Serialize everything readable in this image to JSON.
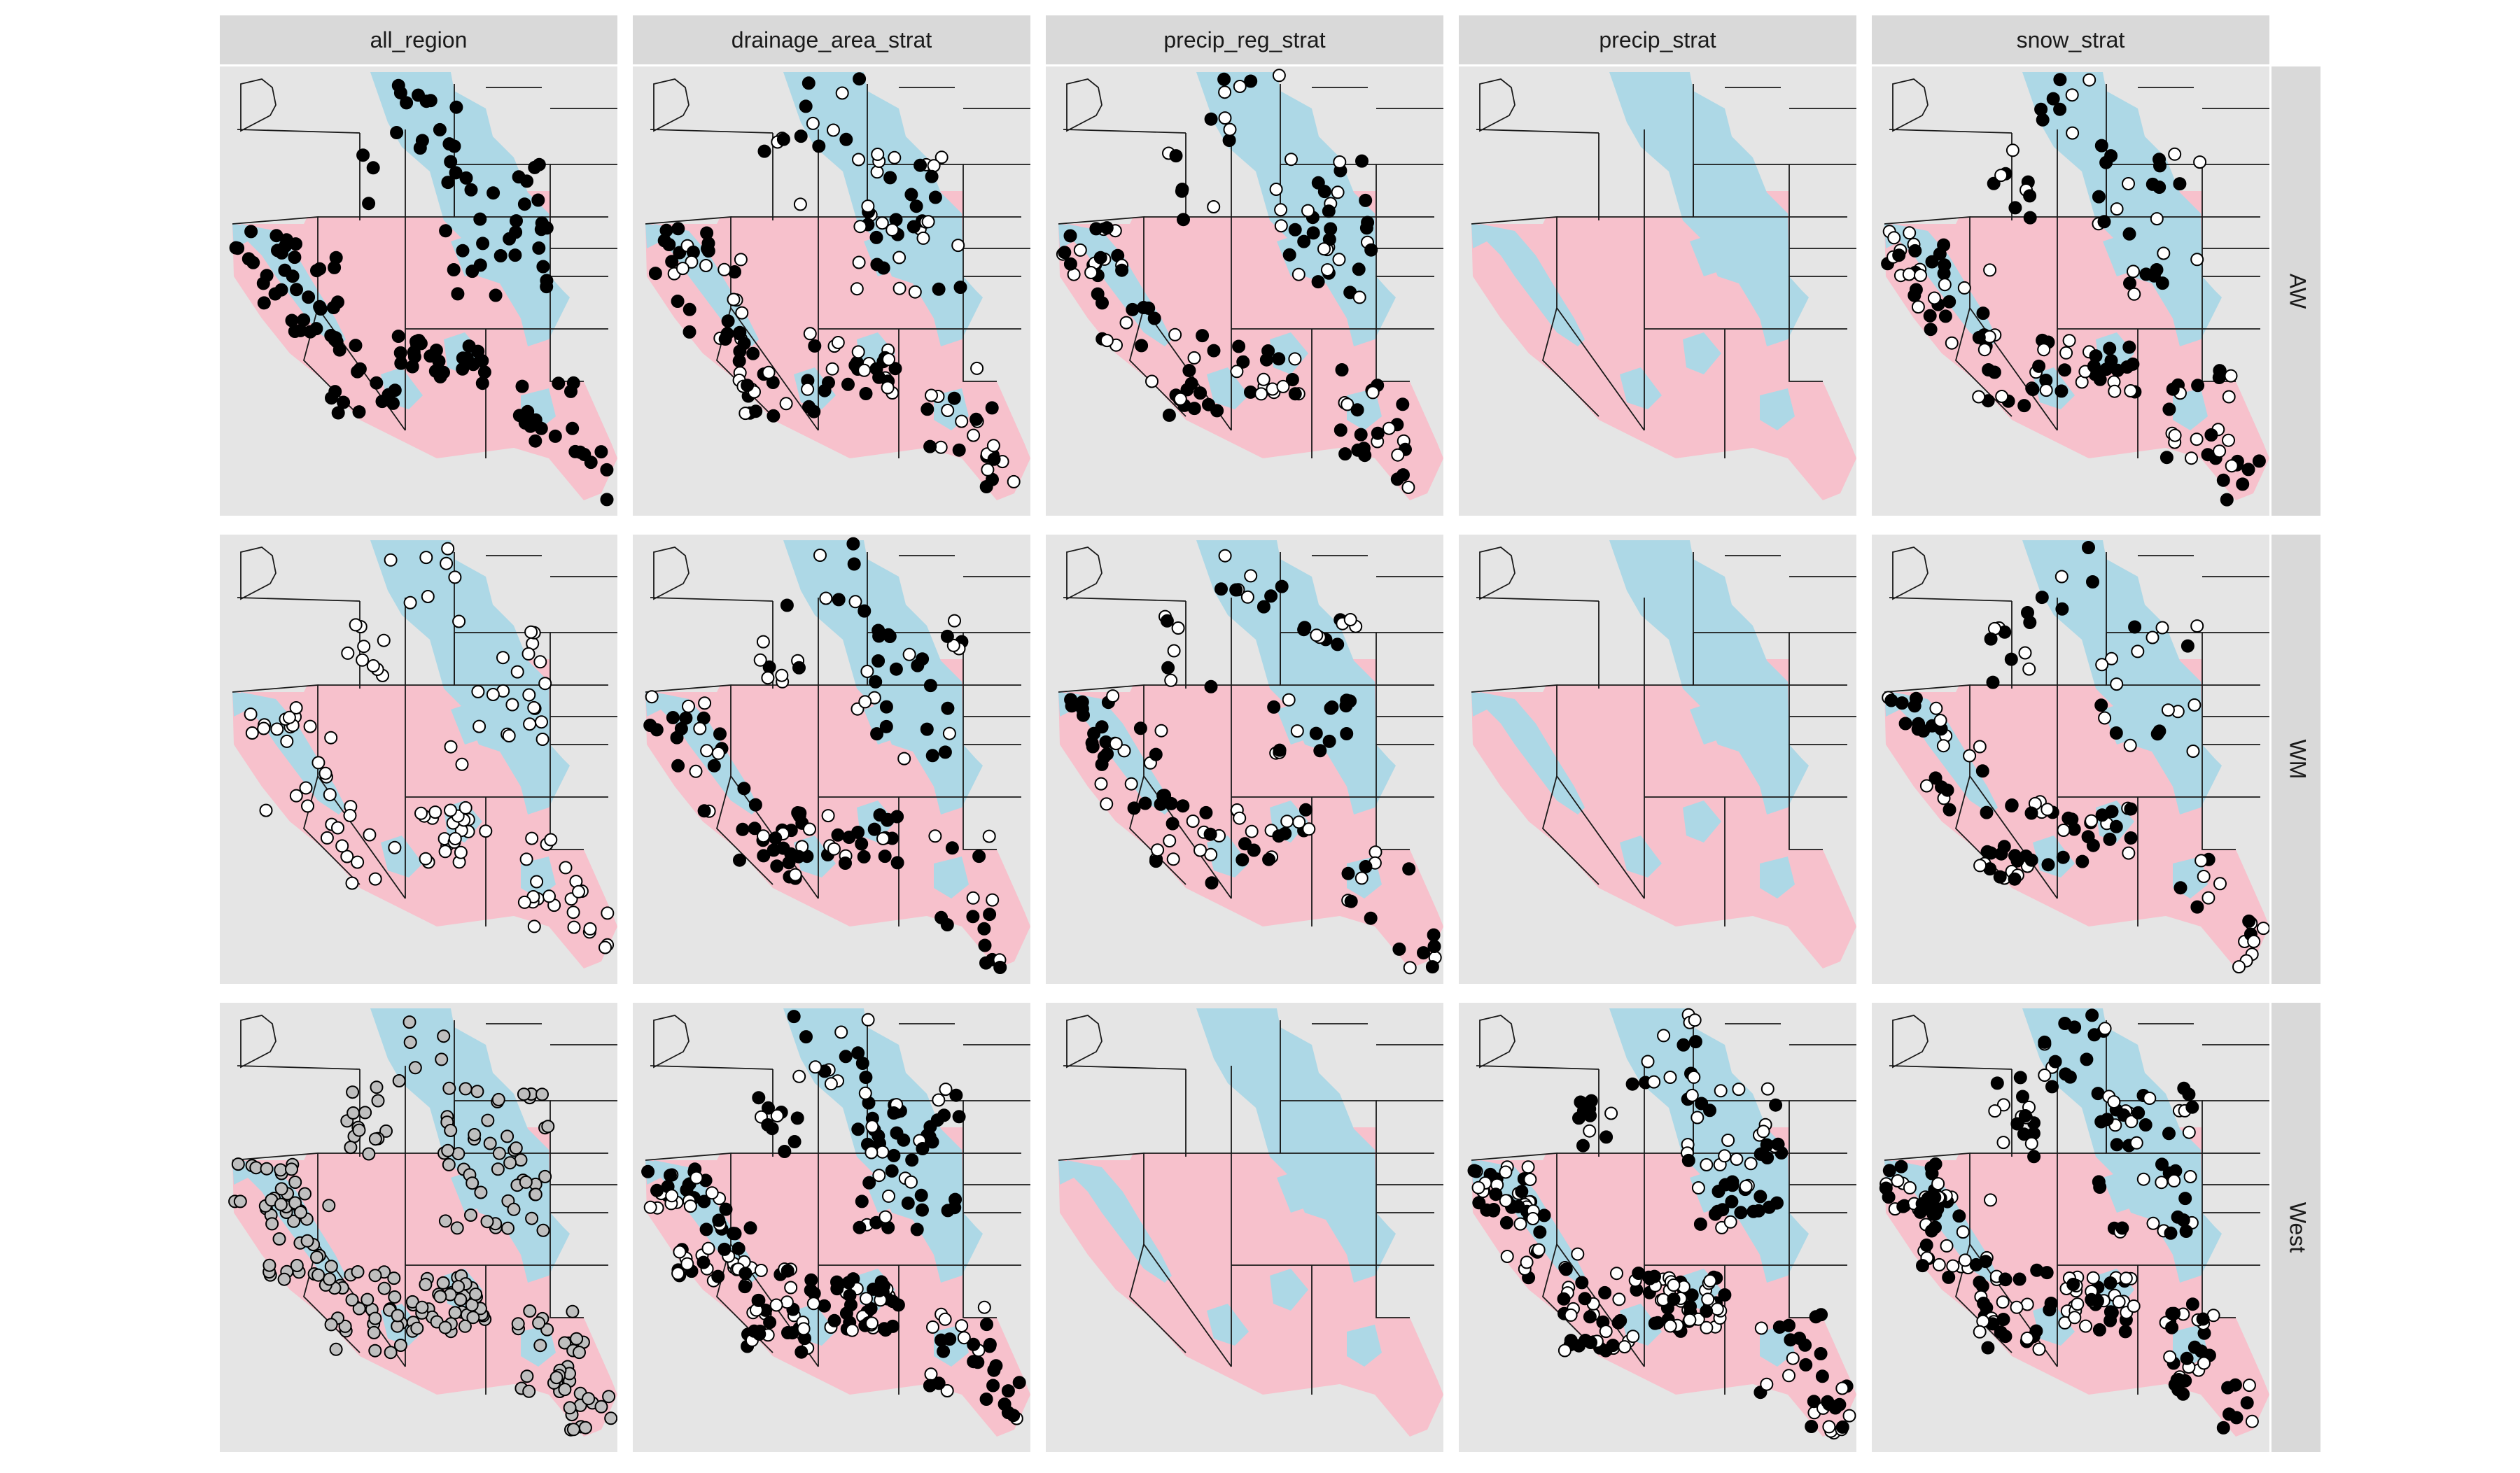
{
  "chart_data": {
    "type": "scatter",
    "facet_columns": [
      "all_region",
      "drainage_area_strat",
      "precip_reg_strat",
      "precip_strat",
      "snow_strat"
    ],
    "facet_rows": [
      "AW",
      "WM",
      "West"
    ],
    "background_fill_colors": {
      "out_of_region": "#e5e5e5",
      "region_a": "#f7c1cc",
      "region_b": "#add8e6",
      "strip": "#d9d9d9",
      "point_black": "#000000",
      "point_white": "#ffffff",
      "point_grey": "#bfbfbf"
    },
    "panels": [
      {
        "row": "AW",
        "col": "all_region",
        "point_style": "black",
        "n_points": 150
      },
      {
        "row": "AW",
        "col": "drainage_area_strat",
        "point_style": "mixed",
        "n_points": 160
      },
      {
        "row": "AW",
        "col": "precip_reg_strat",
        "point_style": "mixed",
        "n_points": 140
      },
      {
        "row": "AW",
        "col": "precip_strat",
        "point_style": "none",
        "n_points": 0
      },
      {
        "row": "AW",
        "col": "snow_strat",
        "point_style": "mixed",
        "n_points": 150
      },
      {
        "row": "WM",
        "col": "all_region",
        "point_style": "white",
        "n_points": 120
      },
      {
        "row": "WM",
        "col": "drainage_area_strat",
        "point_style": "mixed",
        "n_points": 130
      },
      {
        "row": "WM",
        "col": "precip_reg_strat",
        "point_style": "mixed",
        "n_points": 120
      },
      {
        "row": "WM",
        "col": "precip_strat",
        "point_style": "none",
        "n_points": 0
      },
      {
        "row": "WM",
        "col": "snow_strat",
        "point_style": "mixed",
        "n_points": 120
      },
      {
        "row": "West",
        "col": "all_region",
        "point_style": "grey",
        "n_points": 230
      },
      {
        "row": "West",
        "col": "drainage_area_strat",
        "point_style": "mixed",
        "n_points": 240
      },
      {
        "row": "West",
        "col": "precip_reg_strat",
        "point_style": "none",
        "n_points": 0
      },
      {
        "row": "West",
        "col": "precip_strat",
        "point_style": "mixed",
        "n_points": 240
      },
      {
        "row": "West",
        "col": "snow_strat",
        "point_style": "mixed",
        "n_points": 240
      }
    ]
  }
}
